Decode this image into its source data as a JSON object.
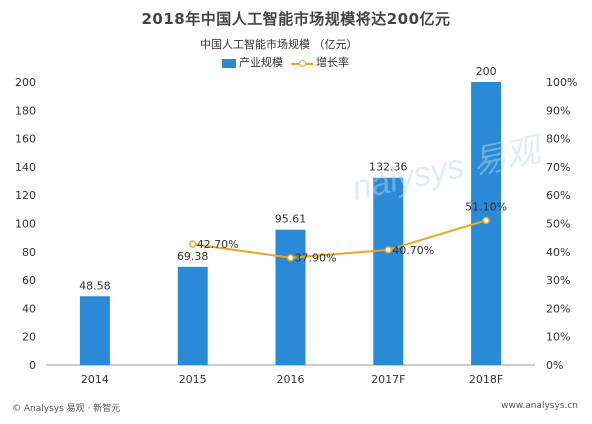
{
  "chart_data": {
    "type": "bar",
    "title": "2018年中国人工智能市场规模将达200亿元",
    "subtitle": "中国人工智能市场规模 （亿元）",
    "categories": [
      "2014",
      "2015",
      "2016",
      "2017F",
      "2018F"
    ],
    "series": [
      {
        "name": "产业规模",
        "type": "bar",
        "axis": "left",
        "color": "#2a8ad6",
        "values": [
          48.58,
          69.38,
          95.61,
          132.36,
          200
        ],
        "labels": [
          "48.58",
          "69.38",
          "95.61",
          "132.36",
          "200"
        ]
      },
      {
        "name": "增长率",
        "type": "line",
        "axis": "right",
        "color": "#e9a826",
        "x": [
          "2015",
          "2016",
          "2017F",
          "2018F"
        ],
        "values": [
          42.7,
          37.9,
          40.7,
          51.1
        ],
        "labels": [
          "42.70%",
          "37.90%",
          "40.70%",
          "51.10%"
        ]
      }
    ],
    "y_left": {
      "min": 0,
      "max": 200,
      "ticks": [
        "0",
        "20",
        "40",
        "60",
        "80",
        "100",
        "120",
        "140",
        "160",
        "180",
        "200"
      ]
    },
    "y_right": {
      "min": 0,
      "max": 100,
      "ticks": [
        "0%",
        "10%",
        "20%",
        "30%",
        "40%",
        "50%",
        "60%",
        "70%",
        "80%",
        "90%",
        "100%"
      ]
    },
    "grid": false,
    "legend_position": "top-center"
  },
  "footer": {
    "source": "© Analysys 易观 · 新智元",
    "url": "www.analysys.cn"
  },
  "watermark": {
    "brand": "nalysys 易观"
  }
}
